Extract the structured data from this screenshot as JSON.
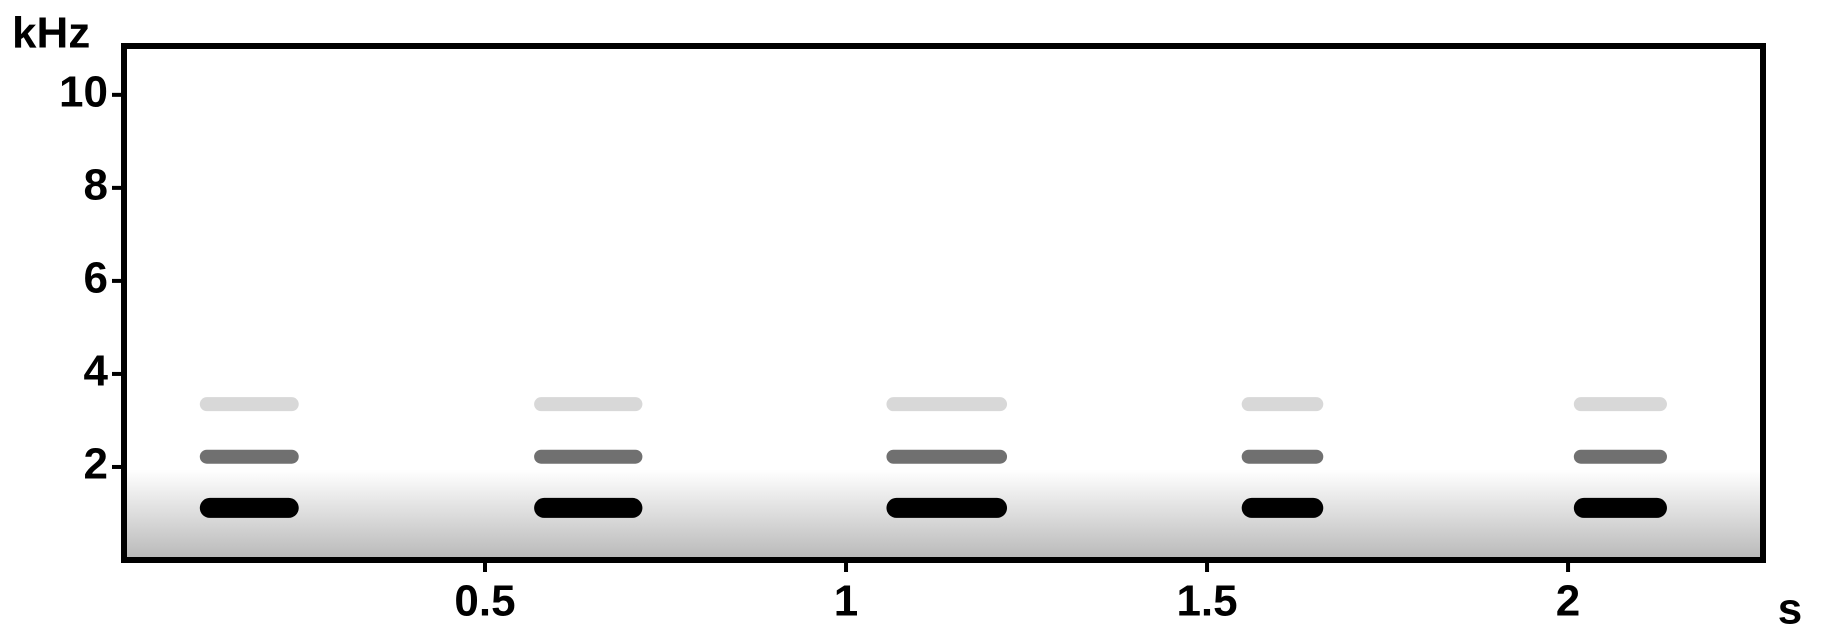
{
  "chart_data": {
    "type": "spectrogram",
    "x_label": "s",
    "y_label": "kHz",
    "xlim": [
      0,
      2.27
    ],
    "ylim": [
      0,
      11.05
    ],
    "xticks": [
      0.5,
      1,
      1.5,
      2
    ],
    "yticks": [
      2,
      4,
      6,
      8,
      10
    ],
    "calls": {
      "start": [
        0.105,
        0.568,
        1.056,
        1.548,
        2.008
      ],
      "end": [
        0.242,
        0.718,
        1.223,
        1.661,
        2.137
      ]
    },
    "harmonics": [
      1.12,
      2.22,
      3.35
    ],
    "harmonic_colors": [
      "#000000",
      "#707070",
      "#d8d8d8"
    ]
  }
}
